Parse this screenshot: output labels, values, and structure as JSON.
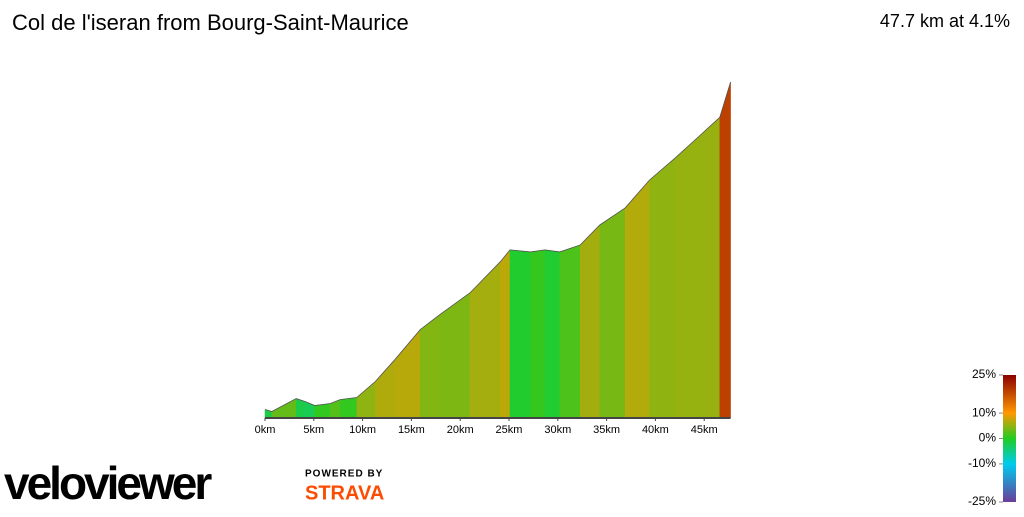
{
  "chart_data": {
    "type": "elevation-profile",
    "title": "Col de l'iseran from Bourg-Saint-Maurice",
    "subtitle": "47.7 km at 4.1%",
    "x": [
      0,
      0.7,
      3.2,
      4.1,
      5.1,
      6.7,
      7.7,
      9.4,
      11.3,
      13.3,
      15.9,
      17.9,
      21.0,
      24.1,
      25.1,
      27.2,
      28.7,
      30.2,
      32.3,
      34.3,
      36.9,
      39.4,
      42.0,
      44.6,
      46.6,
      47.7
    ],
    "series": [
      {
        "values": [
          850,
          838,
          914,
          897,
          873,
          885,
          908,
          920,
          1014,
          1142,
          1318,
          1406,
          1534,
          1716,
          1786,
          1774,
          1786,
          1774,
          1815,
          1932,
          2032,
          2196,
          2324,
          2459,
          2564,
          2770
        ]
      }
    ],
    "xlim": [
      0,
      47.7
    ],
    "ylim": [
      800,
      2800
    ],
    "xticks": [
      {
        "value": 0,
        "label": "0km"
      },
      {
        "value": 5,
        "label": "5km"
      },
      {
        "value": 10,
        "label": "10km"
      },
      {
        "value": 15,
        "label": "15km"
      },
      {
        "value": 20,
        "label": "20km"
      },
      {
        "value": 25,
        "label": "25km"
      },
      {
        "value": 30,
        "label": "30km"
      },
      {
        "value": 35,
        "label": "35km"
      },
      {
        "value": 40,
        "label": "40km"
      },
      {
        "value": 45,
        "label": "45km"
      }
    ],
    "gradient_scale": {
      "ticks": [
        {
          "value": 25,
          "label": "25%"
        },
        {
          "value": 10,
          "label": "10%"
        },
        {
          "value": 0,
          "label": "0%"
        },
        {
          "value": -10,
          "label": "-10%"
        },
        {
          "value": -25,
          "label": "-25%"
        }
      ],
      "colors": [
        "#8b0000",
        "#ff9900",
        "#22cc22",
        "#00ccee",
        "#6a3d9a"
      ]
    }
  },
  "branding": {
    "logo": "veloviewer",
    "powered_by": "POWERED BY",
    "partner": "STRAVA"
  }
}
